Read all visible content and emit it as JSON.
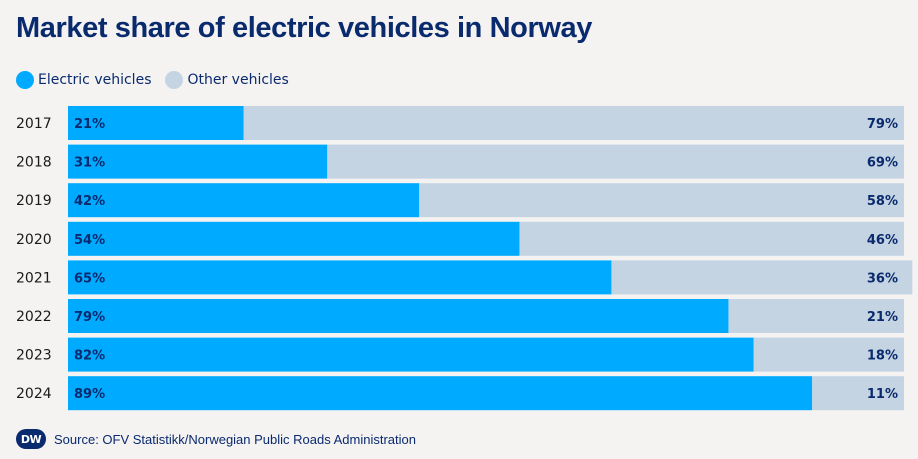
{
  "chart_data": {
    "type": "bar",
    "orientation": "horizontal",
    "stacked": true,
    "title": "Market share of electric vehicles in Norway",
    "categories": [
      "2017",
      "2018",
      "2019",
      "2020",
      "2021",
      "2022",
      "2023",
      "2024"
    ],
    "series": [
      {
        "name": "Electric vehicles",
        "color": "#00aaff",
        "values": [
          21,
          31,
          42,
          54,
          65,
          79,
          82,
          89
        ],
        "labels": [
          "21%",
          "31%",
          "42%",
          "54%",
          "65%",
          "79%",
          "82%",
          "89%"
        ]
      },
      {
        "name": "Other vehicles",
        "color": "#c4d4e2",
        "values": [
          79,
          69,
          58,
          46,
          36,
          21,
          18,
          11
        ],
        "labels": [
          "79%",
          "69%",
          "58%",
          "46%",
          "36%",
          "21%",
          "18%",
          "11%"
        ]
      }
    ],
    "xlim": [
      0,
      100
    ],
    "legend_position": "top-left"
  },
  "footer": {
    "logo_text": "DW",
    "source": "Source: OFV Statistikk/Norwegian Public Roads Administration"
  }
}
